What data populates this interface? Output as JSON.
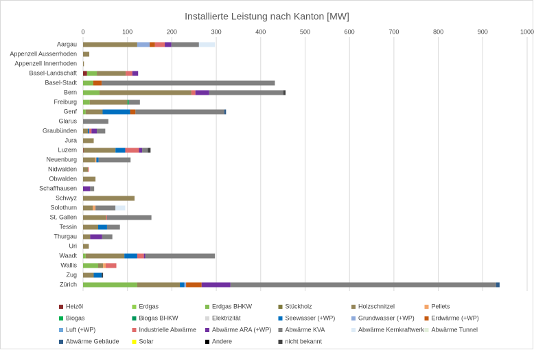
{
  "chart_data": {
    "type": "stacked_barh",
    "title": "Installierte Leistung nach Kanton [MW]",
    "categories": [
      "Aargau",
      "Appenzell Ausserrhoden",
      "Appenzell Innerrhoden",
      "Basel-Landschaft",
      "Basel-Stadt",
      "Bern",
      "Freiburg",
      "Genf",
      "Glarus",
      "Graubünden",
      "Jura",
      "Luzern",
      "Neuenburg",
      "Nidwalden",
      "Obwalden",
      "Schaffhausen",
      "Schwyz",
      "Solothurn",
      "St. Gallen",
      "Tessin",
      "Thurgau",
      "Uri",
      "Waadt",
      "Wallis",
      "Zug",
      "Zürich"
    ],
    "xlim": [
      0,
      1000
    ],
    "xticks": [
      0,
      100,
      200,
      300,
      400,
      500,
      600,
      700,
      800,
      900,
      1000
    ],
    "grid": true,
    "legend": "bottom",
    "series": [
      {
        "name": "Heizöl",
        "color": "#8b2a2a",
        "values": [
          0,
          0,
          0,
          9,
          0,
          0,
          0,
          0,
          0,
          0,
          0,
          1,
          0,
          0,
          0,
          0,
          0,
          0,
          0,
          0,
          0,
          0,
          0,
          0,
          0,
          0
        ]
      },
      {
        "name": "Erdgas",
        "color": "#92d050",
        "values": [
          0,
          0,
          0,
          0,
          0,
          0,
          0,
          0,
          0,
          0,
          0,
          0,
          0,
          0,
          0,
          0,
          0,
          0,
          0,
          0,
          0,
          0,
          0,
          0,
          0,
          0
        ]
      },
      {
        "name": "Erdgas BHKW",
        "color": "#84bd52",
        "values": [
          0,
          0,
          0,
          22,
          23,
          37,
          15,
          6,
          0,
          0,
          0,
          0,
          0,
          0,
          0,
          0,
          0,
          0,
          0,
          0,
          0,
          0,
          6,
          34,
          0,
          122
        ]
      },
      {
        "name": "Stückholz",
        "color": "#7f7a3c",
        "values": [
          0,
          0,
          0,
          0,
          0,
          0,
          0,
          0,
          0,
          0,
          0,
          0,
          0,
          0,
          0,
          0,
          0,
          0,
          0,
          0,
          0,
          0,
          0,
          0,
          0,
          0
        ]
      },
      {
        "name": "Holzschnitzel",
        "color": "#958659",
        "values": [
          122,
          14,
          2,
          65,
          0,
          207,
          85,
          38,
          0,
          11,
          24,
          72,
          27,
          11,
          28,
          0,
          116,
          22,
          52,
          34,
          16,
          13,
          87,
          11,
          24,
          96
        ]
      },
      {
        "name": "Pellets",
        "color": "#f4a56a",
        "values": [
          0,
          0,
          0,
          0,
          0,
          0,
          0,
          0,
          0,
          0,
          0,
          0,
          3,
          0,
          0,
          0,
          0,
          6,
          0,
          0,
          0,
          0,
          0,
          6,
          0,
          0
        ]
      },
      {
        "name": "Biogas",
        "color": "#00b050",
        "values": [
          0,
          0,
          0,
          0,
          0,
          0,
          3,
          0,
          0,
          0,
          0,
          0,
          0,
          0,
          0,
          0,
          0,
          0,
          0,
          0,
          0,
          0,
          0,
          0,
          0,
          0
        ]
      },
      {
        "name": "Biogas BHKW",
        "color": "#00965a",
        "values": [
          0,
          0,
          0,
          0,
          0,
          0,
          0,
          0,
          0,
          0,
          0,
          0,
          0,
          0,
          0,
          0,
          0,
          0,
          0,
          0,
          0,
          0,
          0,
          0,
          0,
          0
        ]
      },
      {
        "name": "Elektrizität",
        "color": "#d9d9d9",
        "values": [
          0,
          0,
          0,
          0,
          0,
          0,
          0,
          0,
          0,
          0,
          0,
          0,
          0,
          0,
          0,
          0,
          0,
          0,
          0,
          0,
          0,
          0,
          0,
          0,
          0,
          0
        ]
      },
      {
        "name": "Seewasser (+WP)",
        "color": "#0070c0",
        "values": [
          0,
          0,
          0,
          0,
          0,
          0,
          0,
          62,
          0,
          3,
          0,
          22,
          5,
          0,
          0,
          0,
          0,
          0,
          0,
          20,
          0,
          0,
          29,
          0,
          18,
          10
        ]
      },
      {
        "name": "Grundwasser (+WP)",
        "color": "#8eaadb",
        "values": [
          28,
          0,
          0,
          0,
          0,
          0,
          0,
          0,
          0,
          0,
          0,
          0,
          0,
          0,
          0,
          0,
          0,
          0,
          0,
          0,
          0,
          0,
          0,
          0,
          0,
          4
        ]
      },
      {
        "name": "Erdwärme (+WP)",
        "color": "#c55a11",
        "values": [
          12,
          0,
          0,
          0,
          19,
          0,
          0,
          12,
          0,
          0,
          0,
          0,
          0,
          0,
          0,
          0,
          0,
          0,
          0,
          0,
          0,
          0,
          0,
          0,
          0,
          35
        ]
      },
      {
        "name": "Luft (+WP)",
        "color": "#6fa8dc",
        "values": [
          0,
          0,
          0,
          0,
          0,
          0,
          0,
          0,
          0,
          0,
          0,
          0,
          0,
          0,
          0,
          0,
          0,
          0,
          0,
          0,
          0,
          0,
          0,
          0,
          0,
          0
        ]
      },
      {
        "name": "Industrielle Abwärme",
        "color": "#e06b6b",
        "values": [
          22,
          0,
          0,
          15,
          0,
          9,
          0,
          0,
          0,
          5,
          0,
          31,
          0,
          2,
          0,
          0,
          0,
          0,
          2,
          0,
          0,
          0,
          15,
          24,
          0,
          0
        ]
      },
      {
        "name": "Abwärme ARA (+WP)",
        "color": "#7030a0",
        "values": [
          15,
          0,
          0,
          13,
          0,
          31,
          0,
          0,
          0,
          12,
          0,
          7,
          0,
          0,
          0,
          16,
          0,
          0,
          0,
          0,
          27,
          0,
          3,
          0,
          0,
          65
        ]
      },
      {
        "name": "Abwärme KVA",
        "color": "#808080",
        "values": [
          62,
          0,
          0,
          0,
          390,
          167,
          25,
          200,
          57,
          19,
          0,
          13,
          72,
          0,
          0,
          9,
          0,
          45,
          100,
          29,
          23,
          0,
          157,
          0,
          0,
          598
        ]
      },
      {
        "name": "Abwärme Kernkraftwerk",
        "color": "#ddebf7",
        "values": [
          36,
          0,
          0,
          0,
          0,
          0,
          0,
          0,
          0,
          0,
          0,
          0,
          0,
          0,
          0,
          0,
          0,
          22,
          0,
          0,
          0,
          0,
          0,
          0,
          0,
          0
        ]
      },
      {
        "name": "Abwärme Tunnel",
        "color": "#e2efda",
        "values": [
          0,
          0,
          0,
          0,
          0,
          0,
          0,
          0,
          0,
          0,
          0,
          0,
          0,
          0,
          0,
          0,
          0,
          0,
          0,
          0,
          0,
          0,
          0,
          0,
          0,
          0
        ]
      },
      {
        "name": "Abwärme Gebäude",
        "color": "#2e5c8a",
        "values": [
          0,
          0,
          0,
          0,
          0,
          0,
          0,
          4,
          0,
          0,
          0,
          0,
          0,
          0,
          0,
          0,
          0,
          0,
          0,
          0,
          0,
          0,
          0,
          0,
          0,
          8
        ]
      },
      {
        "name": "Solar",
        "color": "#ffff00",
        "values": [
          0,
          0,
          0,
          0,
          0,
          0,
          0,
          0,
          0,
          0,
          0,
          0,
          0,
          0,
          0,
          0,
          0,
          0,
          0,
          0,
          0,
          0,
          0,
          0,
          0,
          0
        ]
      },
      {
        "name": "Andere",
        "color": "#000000",
        "values": [
          0,
          0,
          0,
          0,
          0,
          0,
          0,
          0,
          0,
          0,
          0,
          0,
          0,
          0,
          0,
          0,
          0,
          0,
          0,
          0,
          0,
          0,
          0,
          0,
          0,
          0
        ]
      },
      {
        "name": "nicht bekannt",
        "color": "#404040",
        "values": [
          0,
          0,
          0,
          0,
          0,
          5,
          0,
          0,
          0,
          0,
          0,
          6,
          0,
          0,
          0,
          0,
          0,
          0,
          0,
          0,
          0,
          0,
          0,
          0,
          3,
          0
        ]
      }
    ]
  }
}
